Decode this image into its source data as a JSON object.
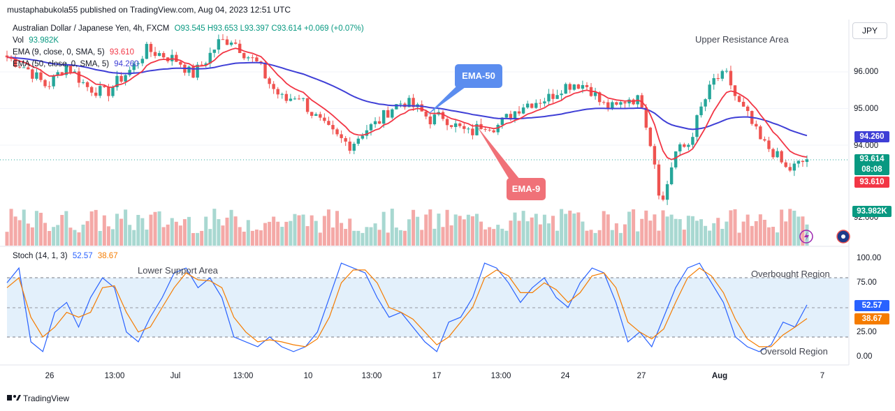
{
  "header": {
    "publisher": "mustaphabukola55 published on TradingView.com, Aug 04, 2023 12:51 UTC"
  },
  "legend": {
    "symbol": "Australian Dollar / Japanese Yen, 4h, FXCM",
    "ohlc": "O93.545 H93.653 L93.397 C93.614 +0.069 (+0.07%)",
    "vol_label": "Vol",
    "vol_value": "93.982K",
    "ema9_label": "EMA (9, close, 0, SMA, 5)",
    "ema9_value": "93.610",
    "ema50_label": "EMA (50, close, 0, SMA, 5)",
    "ema50_value": "94.260",
    "stoch_label": "Stoch (14, 1, 3)",
    "stoch_k": "52.57",
    "stoch_d": "38.67"
  },
  "currency_button": "JPY",
  "annotations": {
    "upper_resistance": "Upper Resistance Area",
    "lower_support": "Lower Support Area",
    "overbought": "Overbought Region",
    "oversold": "Oversold Region",
    "ema50_callout": "EMA-50",
    "ema9_callout": "EMA-9"
  },
  "price_labels": {
    "ema50": "94.260",
    "close": "93.614",
    "countdown": "08:08",
    "ema9": "93.610",
    "volume": "93.982K",
    "stoch_k": "52.57",
    "stoch_d": "38.67"
  },
  "colors": {
    "up": "#26a69a",
    "down": "#ef5350",
    "ema9": "#f23645",
    "ema50": "#3f3fd6",
    "stoch_k": "#2962ff",
    "stoch_d": "#f57c00",
    "ema50_callout": "#5b8def",
    "ema9_callout": "#f07178"
  },
  "footer": {
    "brand": "TradingView"
  },
  "chart_data": [
    {
      "type": "candlestick",
      "title": "Australian Dollar / Japanese Yen, 4h, FXCM",
      "ylabel": "JPY",
      "ylim": [
        91.8,
        97.0
      ],
      "y_ticks": [
        "96.000",
        "95.000",
        "94.000",
        "92.000"
      ],
      "x_ticks": [
        "26",
        "13:00",
        "Jul",
        "13:00",
        "10",
        "13:00",
        "17",
        "13:00",
        "24",
        "27",
        "Aug",
        "7"
      ],
      "close_path": [
        [
          0,
          96.4
        ],
        [
          15,
          96.1
        ],
        [
          30,
          95.6
        ],
        [
          45,
          96.2
        ],
        [
          60,
          95.6
        ],
        [
          75,
          95.4
        ],
        [
          85,
          95.8
        ],
        [
          95,
          96.1
        ],
        [
          105,
          96.6
        ],
        [
          115,
          96.5
        ],
        [
          130,
          96.3
        ],
        [
          140,
          95.9
        ],
        [
          150,
          96.3
        ],
        [
          160,
          96.8
        ],
        [
          170,
          96.9
        ],
        [
          180,
          96.5
        ],
        [
          190,
          96.2
        ],
        [
          200,
          95.6
        ],
        [
          210,
          95.2
        ],
        [
          220,
          95.4
        ],
        [
          230,
          94.9
        ],
        [
          240,
          94.5
        ],
        [
          250,
          94.2
        ],
        [
          260,
          94.0
        ],
        [
          270,
          94.4
        ],
        [
          280,
          94.6
        ],
        [
          290,
          95.0
        ],
        [
          300,
          95.2
        ],
        [
          310,
          95.0
        ],
        [
          320,
          94.7
        ],
        [
          330,
          94.8
        ],
        [
          340,
          94.5
        ],
        [
          350,
          94.3
        ],
        [
          360,
          94.6
        ],
        [
          370,
          94.5
        ],
        [
          380,
          94.8
        ],
        [
          390,
          95.1
        ],
        [
          400,
          95.2
        ],
        [
          410,
          95.3
        ],
        [
          420,
          95.6
        ],
        [
          430,
          95.7
        ],
        [
          440,
          95.6
        ],
        [
          450,
          95.1
        ],
        [
          460,
          95.0
        ],
        [
          470,
          95.3
        ],
        [
          480,
          95.2
        ],
        [
          490,
          93.5
        ],
        [
          495,
          92.3
        ],
        [
          505,
          93.8
        ],
        [
          515,
          94.0
        ],
        [
          525,
          95.0
        ],
        [
          535,
          95.8
        ],
        [
          545,
          95.9
        ],
        [
          552,
          95.2
        ],
        [
          560,
          94.8
        ],
        [
          570,
          94.1
        ],
        [
          580,
          93.8
        ],
        [
          590,
          93.3
        ],
        [
          600,
          93.5
        ],
        [
          605,
          93.614
        ]
      ],
      "ema9_value": 93.61,
      "ema50_value": 94.26,
      "last_close": 93.614
    },
    {
      "type": "bar",
      "title": "Vol",
      "last_value": "93.982K"
    },
    {
      "type": "line",
      "title": "Stoch (14, 1, 3)",
      "ylim": [
        0,
        100
      ],
      "y_ticks": [
        "100.00",
        "75.00",
        "25.00",
        "0.00"
      ],
      "overbought": 80,
      "oversold": 20,
      "series": [
        {
          "name": "%K",
          "values": [
            75,
            90,
            15,
            5,
            45,
            55,
            30,
            60,
            80,
            70,
            25,
            15,
            40,
            60,
            85,
            90,
            70,
            80,
            60,
            20,
            15,
            10,
            20,
            10,
            5,
            10,
            25,
            60,
            95,
            90,
            85,
            60,
            40,
            45,
            30,
            15,
            5,
            35,
            40,
            60,
            95,
            90,
            75,
            55,
            70,
            80,
            60,
            50,
            75,
            90,
            85,
            55,
            15,
            25,
            10,
            40,
            70,
            90,
            95,
            75,
            55,
            20,
            10,
            5,
            12,
            35,
            30,
            52.57
          ]
        },
        {
          "name": "%D",
          "values": [
            70,
            80,
            40,
            20,
            30,
            45,
            40,
            45,
            70,
            72,
            45,
            25,
            30,
            50,
            70,
            85,
            78,
            77,
            70,
            40,
            25,
            15,
            17,
            15,
            12,
            10,
            18,
            40,
            75,
            88,
            88,
            75,
            50,
            45,
            38,
            25,
            12,
            20,
            35,
            50,
            80,
            88,
            82,
            65,
            65,
            75,
            68,
            55,
            65,
            82,
            85,
            70,
            35,
            25,
            18,
            28,
            55,
            80,
            90,
            82,
            65,
            38,
            18,
            10,
            10,
            22,
            30,
            38.67
          ]
        }
      ]
    }
  ]
}
